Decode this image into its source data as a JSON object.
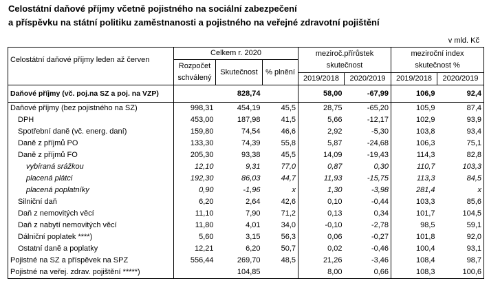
{
  "title": {
    "line1": "Celostátní daňové příjmy včetně pojistného na sociální zabezpečení",
    "line2": "a příspěvku na státní politiku zaměstnanosti a pojistného na veřejné zdravotní pojištění"
  },
  "unit": "v mld. Kč",
  "header": {
    "row_label": "Celostátní daňové příjmy leden až červen",
    "group1": "Celkem r. 2020",
    "group2": "meziroč.přírůstek skutečnost",
    "group3": "meziroční index skutečnost %",
    "col1": "Rozpočet schválený",
    "col2": "Skutečnost",
    "col3": "% plnění",
    "col4": "2019/2018",
    "col5": "2020/2019",
    "col6": "2019/2018",
    "col7": "2020/2019"
  },
  "rows": [
    {
      "label": "Daňové příjmy (vč. poj.na SZ a poj. na VZP)",
      "budget": "",
      "actual": "828,74",
      "pct": "",
      "d1": "58,00",
      "d2": "-67,99",
      "i1": "106,9",
      "i2": "92,4"
    },
    {
      "label": "Daňové příjmy (bez pojistného na SZ)",
      "budget": "998,31",
      "actual": "454,19",
      "pct": "45,5",
      "d1": "28,75",
      "d2": "-65,20",
      "i1": "105,9",
      "i2": "87,4"
    },
    {
      "label": "DPH",
      "budget": "453,00",
      "actual": "187,98",
      "pct": "41,5",
      "d1": "5,66",
      "d2": "-12,17",
      "i1": "102,9",
      "i2": "93,9"
    },
    {
      "label": "Spotřební daně (vč. energ. daní)",
      "budget": "159,80",
      "actual": "74,54",
      "pct": "46,6",
      "d1": "2,92",
      "d2": "-5,30",
      "i1": "103,8",
      "i2": "93,4"
    },
    {
      "label": "Daně z příjmů PO",
      "budget": "133,30",
      "actual": "74,39",
      "pct": "55,8",
      "d1": "5,87",
      "d2": "-24,68",
      "i1": "106,3",
      "i2": "75,1"
    },
    {
      "label": "Daně z příjmů FO",
      "budget": "205,30",
      "actual": "93,38",
      "pct": "45,5",
      "d1": "14,09",
      "d2": "-19,43",
      "i1": "114,3",
      "i2": "82,8"
    },
    {
      "label": "vybíraná srážkou",
      "budget": "12,10",
      "actual": "9,31",
      "pct": "77,0",
      "d1": "0,87",
      "d2": "0,30",
      "i1": "110,7",
      "i2": "103,3"
    },
    {
      "label": "placená plátci",
      "budget": "192,30",
      "actual": "86,03",
      "pct": "44,7",
      "d1": "11,93",
      "d2": "-15,75",
      "i1": "113,3",
      "i2": "84,5"
    },
    {
      "label": "placená poplatníky",
      "budget": "0,90",
      "actual": "-1,96",
      "pct": "x",
      "d1": "1,30",
      "d2": "-3,98",
      "i1": "281,4",
      "i2": "x"
    },
    {
      "label": "Silniční daň",
      "budget": "6,20",
      "actual": "2,64",
      "pct": "42,6",
      "d1": "0,10",
      "d2": "-0,44",
      "i1": "103,3",
      "i2": "85,6"
    },
    {
      "label": "Daň z nemovitých věcí",
      "budget": "11,10",
      "actual": "7,90",
      "pct": "71,2",
      "d1": "0,13",
      "d2": "0,34",
      "i1": "101,7",
      "i2": "104,5"
    },
    {
      "label": "Daň z nabytí nemovitých věcí",
      "budget": "11,80",
      "actual": "4,01",
      "pct": "34,0",
      "d1": "-0,10",
      "d2": "-2,78",
      "i1": "98,5",
      "i2": "59,1"
    },
    {
      "label": "Dálniční poplatek ****)",
      "budget": "5,60",
      "actual": "3,15",
      "pct": "56,3",
      "d1": "0,06",
      "d2": "-0,27",
      "i1": "101,8",
      "i2": "92,0"
    },
    {
      "label": "Ostatní daně a poplatky",
      "budget": "12,21",
      "actual": "6,20",
      "pct": "50,7",
      "d1": "0,02",
      "d2": "-0,46",
      "i1": "100,4",
      "i2": "93,1"
    },
    {
      "label": "Pojistné na SZ a příspěvek na SPZ",
      "budget": "556,44",
      "actual": "269,70",
      "pct": "48,5",
      "d1": "21,26",
      "d2": "-3,46",
      "i1": "108,4",
      "i2": "98,7"
    },
    {
      "label": "Pojistné na veřej. zdrav. pojištění *****)",
      "budget": "",
      "actual": "104,85",
      "pct": "",
      "d1": "8,00",
      "d2": "0,66",
      "i1": "108,3",
      "i2": "100,6"
    }
  ]
}
